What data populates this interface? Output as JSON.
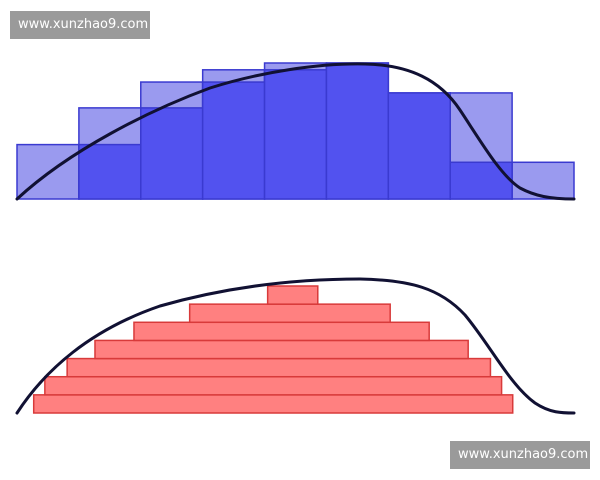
{
  "watermarks": {
    "top": "www.xunzhao9.com",
    "bottom": "www.xunzhao9.com"
  },
  "colors": {
    "riemann_outer_fill": "#9a9aef",
    "riemann_inner_fill": "#5252ef",
    "riemann_stroke": "#3a3ad0",
    "lebesgue_fill": "#ff8080",
    "lebesgue_stroke": "#d83a3a",
    "curve": "#111133",
    "watermark_bg": "#9a9a9a",
    "watermark_text": "#ffffff"
  },
  "top_diagram": {
    "columns": 9,
    "outer_heights": [
      0.4,
      0.67,
      0.86,
      0.95,
      1.0,
      1.0,
      0.78,
      0.78,
      0.27
    ],
    "inner_heights": [
      0.0,
      0.4,
      0.67,
      0.86,
      0.95,
      1.0,
      0.78,
      0.27,
      0.0
    ]
  },
  "bottom_diagram": {
    "strips": 7,
    "strip_extents": [
      [
        0.03,
        0.89
      ],
      [
        0.05,
        0.87
      ],
      [
        0.09,
        0.85
      ],
      [
        0.14,
        0.81
      ],
      [
        0.21,
        0.74
      ],
      [
        0.31,
        0.67
      ],
      [
        0.45,
        0.54
      ]
    ]
  }
}
